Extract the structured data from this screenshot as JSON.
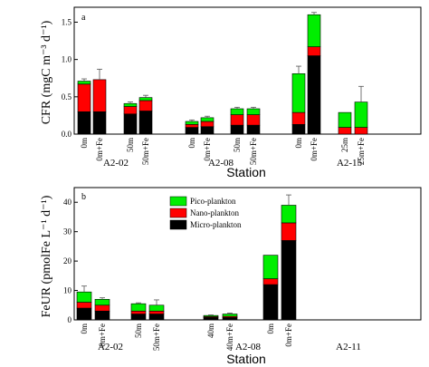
{
  "colors": {
    "micro": "#000000",
    "nano": "#ff0000",
    "pico": "#00ee00"
  },
  "chart_data": [
    {
      "type": "bar",
      "stacked": true,
      "panel_letter": "a",
      "xlabel": "Station",
      "ylabel": "CFR (mgC m⁻³ d⁻¹)",
      "ylim": [
        0,
        1.7
      ],
      "yticks": [
        "0.0",
        "0.5",
        "1.0",
        "1.5"
      ],
      "stations": [
        "A2-02",
        "A2-08",
        "A2-15"
      ],
      "categories": [
        "0m",
        "0m+Fe",
        "50m",
        "50m+Fe",
        "0m",
        "0m+Fe",
        "50m",
        "50m+Fe",
        "0m",
        "0m+Fe",
        "25m",
        "25m+Fe"
      ],
      "series": [
        {
          "name": "Micro-plankton",
          "values": [
            0.3,
            0.3,
            0.27,
            0.31,
            0.09,
            0.1,
            0.12,
            0.12,
            0.13,
            1.05,
            0.0,
            0.0
          ]
        },
        {
          "name": "Nano-plankton",
          "values": [
            0.37,
            0.43,
            0.1,
            0.14,
            0.04,
            0.07,
            0.14,
            0.14,
            0.16,
            0.12,
            0.09,
            0.09
          ]
        },
        {
          "name": "Pico-plankton",
          "values": [
            0.04,
            0.0,
            0.04,
            0.04,
            0.04,
            0.05,
            0.08,
            0.08,
            0.52,
            0.43,
            0.2,
            0.34
          ]
        }
      ],
      "error_bars": [
        0.03,
        0.14,
        0.02,
        0.03,
        0.02,
        0.02,
        0.02,
        0.02,
        0.1,
        0.03,
        0.0,
        0.21
      ]
    },
    {
      "type": "bar",
      "stacked": true,
      "panel_letter": "b",
      "xlabel": "Station",
      "ylabel": "FeUR (pmolFe L⁻¹ d⁻¹)",
      "ylim": [
        0,
        45
      ],
      "yticks": [
        "0",
        "10",
        "20",
        "30",
        "40"
      ],
      "stations": [
        "A2-02",
        "A2-08",
        "A2-11"
      ],
      "categories": [
        "0m",
        "0m+Fe",
        "50m",
        "50m+Fe",
        "40m",
        "40m+Fe",
        "0m",
        "0m+Fe"
      ],
      "series": [
        {
          "name": "Micro-plankton",
          "values": [
            4.0,
            3.0,
            2.0,
            2.0,
            0.8,
            0.8,
            12.0,
            27.0
          ]
        },
        {
          "name": "Nano-plankton",
          "values": [
            2.0,
            2.0,
            1.0,
            1.0,
            0.3,
            0.4,
            2.0,
            6.0
          ]
        },
        {
          "name": "Pico-plankton",
          "values": [
            3.5,
            2.0,
            2.5,
            2.0,
            0.4,
            0.8,
            8.0,
            6.0
          ]
        }
      ],
      "error_bars": [
        2.0,
        0.5,
        0.3,
        1.8,
        0.2,
        0.3,
        0.0,
        3.5
      ],
      "legend": {
        "placement": "top-center",
        "entries": [
          "Pico-plankton",
          "Nano-plankton",
          "Micro-plankton"
        ]
      }
    }
  ]
}
